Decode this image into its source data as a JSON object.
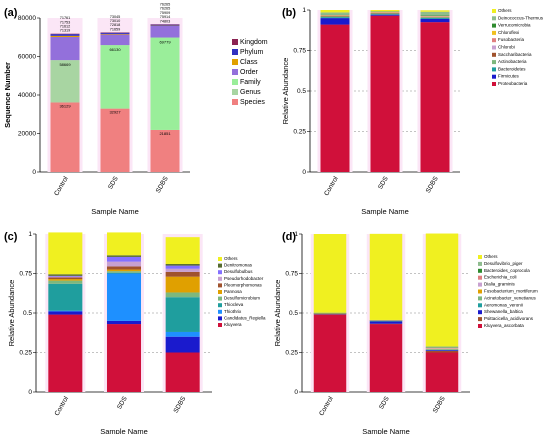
{
  "chart_data": [
    {
      "panel": "(a)",
      "type": "bar",
      "stacked": true,
      "xlabel": "Sample Name",
      "ylabel": "Sequence Number",
      "ylim": [
        0,
        80000
      ],
      "yticks": [
        "0",
        "20000",
        "40000",
        "60000",
        "80000"
      ],
      "categories": [
        "Control",
        "SDS",
        "SDBS"
      ],
      "legend_position": "right",
      "series": [
        {
          "name": "Species",
          "color": "#f08080",
          "values": [
            36129,
            32927,
            21851
          ]
        },
        {
          "name": "Genus",
          "color": "#a8d5a2",
          "values": [
            22000,
            0,
            0
          ]
        },
        {
          "name": "Family",
          "color": "#9aee9a",
          "values": [
            0,
            33000,
            48000
          ]
        },
        {
          "name": "Order",
          "color": "#9370db",
          "values": [
            12000,
            5500,
            6000
          ]
        },
        {
          "name": "Class",
          "color": "#e0a000",
          "values": [
            600,
            300,
            200
          ]
        },
        {
          "name": "Phylum",
          "color": "#3030c0",
          "values": [
            900,
            600,
            500
          ]
        },
        {
          "name": "Kingdom",
          "color": "#8b2252",
          "values": [
            200,
            200,
            200
          ]
        }
      ],
      "bar_top_labels": [
        [
          "71761",
          "71753",
          "71612",
          "71319"
        ],
        [
          "73045",
          "73010",
          "72818",
          "71659"
        ],
        [
          "76265",
          "76265",
          "75909",
          "75914",
          "74803"
        ]
      ],
      "inner_labels": [
        [
          "58669",
          "36129"
        ],
        [
          "66130",
          "32927"
        ],
        [
          "69779",
          "21851"
        ]
      ]
    },
    {
      "panel": "(b)",
      "type": "bar",
      "stacked": true,
      "xlabel": "Sample Name",
      "ylabel": "Relative Abundance",
      "ylim": [
        0,
        1
      ],
      "yticks": [
        "0",
        "0.25",
        "0.5",
        "0.75",
        "1"
      ],
      "categories": [
        "Control",
        "SDS",
        "SDBS"
      ],
      "legend_position": "top-right",
      "series": [
        {
          "name": "Proteobacteria",
          "color": "#d0103a",
          "values": [
            0.91,
            0.965,
            0.925
          ]
        },
        {
          "name": "Firmicutes",
          "color": "#1a1acd",
          "values": [
            0.04,
            0.006,
            0.02
          ]
        },
        {
          "name": "Bacteroidetes",
          "color": "#1f9e9e",
          "values": [
            0.006,
            0.004,
            0.006
          ]
        },
        {
          "name": "Actinobacteria",
          "color": "#7db87d",
          "values": [
            0.004,
            0.004,
            0.004
          ]
        },
        {
          "name": "Saccharibacteria",
          "color": "#a0522d",
          "values": [
            0.003,
            0.003,
            0.003
          ]
        },
        {
          "name": "Chlorobi",
          "color": "#c8a0d0",
          "values": [
            0.002,
            0.002,
            0.002
          ]
        },
        {
          "name": "Fusobacteria",
          "color": "#e07f7f",
          "values": [
            0.002,
            0.002,
            0.002
          ]
        },
        {
          "name": "Chloroflexi",
          "color": "#f0c020",
          "values": [
            0.002,
            0.002,
            0.002
          ]
        },
        {
          "name": "Verrucomicrobia",
          "color": "#2e8b2e",
          "values": [
            0.002,
            0.002,
            0.002
          ]
        },
        {
          "name": "Deinococcus-Thermus",
          "color": "#8fbc8f",
          "values": [
            0.014,
            0.002,
            0.023
          ]
        },
        {
          "name": "Others",
          "color": "#f0f020",
          "values": [
            0.015,
            0.008,
            0.009
          ]
        }
      ]
    },
    {
      "panel": "(c)",
      "type": "bar",
      "stacked": true,
      "xlabel": "Sample Name",
      "ylabel": "Relative Abundance",
      "ylim": [
        0,
        1
      ],
      "yticks": [
        "0",
        "0.25",
        "0.5",
        "0.75",
        "1"
      ],
      "categories": [
        "Control",
        "SDS",
        "SDBS"
      ],
      "legend_position": "right",
      "series": [
        {
          "name": "Kluyvera",
          "color": "#d0103a",
          "values": [
            0.49,
            0.43,
            0.25
          ]
        },
        {
          "name": "Candidatus_Regiella",
          "color": "#1a1acd",
          "values": [
            0.02,
            0.02,
            0.1
          ]
        },
        {
          "name": "Thiothrix",
          "color": "#1e90ff",
          "values": [
            0.005,
            0.3,
            0.03
          ]
        },
        {
          "name": "Thiocleva",
          "color": "#1f9e9e",
          "values": [
            0.17,
            0.005,
            0.22
          ]
        },
        {
          "name": "Desulfomicrobium",
          "color": "#7db87d",
          "values": [
            0.02,
            0.01,
            0.03
          ]
        },
        {
          "name": "Pannosa",
          "color": "#e0a000",
          "values": [
            0.01,
            0.01,
            0.1
          ]
        },
        {
          "name": "Pleomorphomonas",
          "color": "#a0522d",
          "values": [
            0.01,
            0.02,
            0.03
          ]
        },
        {
          "name": "Pseudorhodobacter",
          "color": "#c8a0d0",
          "values": [
            0.005,
            0.03,
            0.02
          ]
        },
        {
          "name": "Desulfobulbus",
          "color": "#8470ff",
          "values": [
            0.005,
            0.03,
            0.02
          ]
        },
        {
          "name": "Denitromonas",
          "color": "#556b2f",
          "values": [
            0.01,
            0.01,
            0.01
          ]
        },
        {
          "name": "Others",
          "color": "#f0f020",
          "values": [
            0.265,
            0.145,
            0.17
          ]
        }
      ]
    },
    {
      "panel": "(d)",
      "type": "bar",
      "stacked": true,
      "xlabel": "Sample Name",
      "ylabel": "Relative Abundance",
      "ylim": [
        0,
        1
      ],
      "yticks": [
        "0",
        "0.25",
        "0.5",
        "0.75",
        "1"
      ],
      "categories": [
        "Control",
        "SDS",
        "SDBS"
      ],
      "legend_position": "right",
      "series": [
        {
          "name": "Kluyvera_ascorbata",
          "color": "#d0103a",
          "values": [
            0.49,
            0.43,
            0.25
          ]
        },
        {
          "name": "Psittacicella_acidivorans",
          "color": "#a0522d",
          "values": [
            0.002,
            0.002,
            0.01
          ]
        },
        {
          "name": "Shewanella_baltica",
          "color": "#1a1acd",
          "values": [
            0.003,
            0.015,
            0.005
          ]
        },
        {
          "name": "Aeromonas_veronii",
          "color": "#1f9e9e",
          "values": [
            0.001,
            0.002,
            0.003
          ]
        },
        {
          "name": "Acinetobacter_venetianus",
          "color": "#7db87d",
          "values": [
            0.001,
            0.002,
            0.003
          ]
        },
        {
          "name": "Fusobacterium_mortiferum",
          "color": "#e0a000",
          "values": [
            0.001,
            0.001,
            0.003
          ]
        },
        {
          "name": "Dialia_graminis",
          "color": "#c8a0d0",
          "values": [
            0.001,
            0.001,
            0.003
          ]
        },
        {
          "name": "Escherichia_coli",
          "color": "#e07f7f",
          "values": [
            0.001,
            0.001,
            0.003
          ]
        },
        {
          "name": "Bacteroides_coprocola",
          "color": "#2e8b2e",
          "values": [
            0.001,
            0.001,
            0.003
          ]
        },
        {
          "name": "Desulfovibrio_piger",
          "color": "#8fbc8f",
          "values": [
            0.001,
            0.001,
            0.005
          ]
        },
        {
          "name": "Others",
          "color": "#f0f020",
          "values": [
            0.498,
            0.545,
            0.715
          ]
        }
      ]
    }
  ]
}
